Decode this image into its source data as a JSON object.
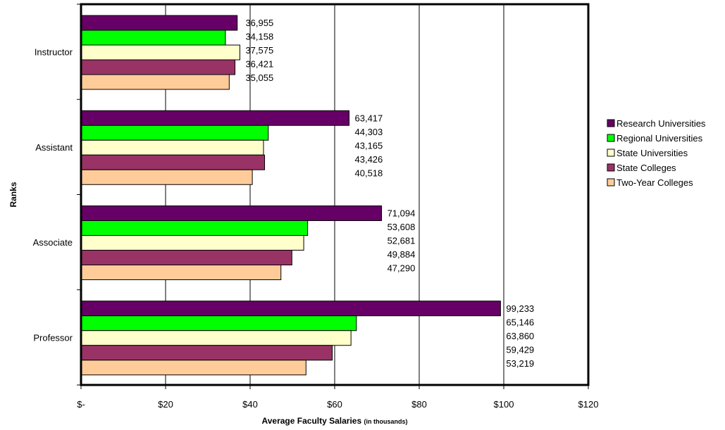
{
  "chart_data": {
    "type": "bar",
    "orientation": "horizontal",
    "categories": [
      "Instructor",
      "Assistant",
      "Associate",
      "Professor"
    ],
    "series": [
      {
        "name": "Research Universities",
        "color": "#660066",
        "values": [
          36955,
          63417,
          71094,
          99233
        ]
      },
      {
        "name": "Regional Universities",
        "color": "#00ff00",
        "values": [
          34158,
          44303,
          53608,
          65146
        ]
      },
      {
        "name": "State Universities",
        "color": "#ffffcc",
        "values": [
          37575,
          43165,
          52681,
          63860
        ]
      },
      {
        "name": "State Colleges",
        "color": "#993366",
        "values": [
          36421,
          43426,
          49884,
          59429
        ]
      },
      {
        "name": "Two-Year Colleges",
        "color": "#ffcc99",
        "values": [
          35055,
          40518,
          47290,
          53219
        ]
      }
    ],
    "value_labels": [
      [
        "36,955",
        "63,417",
        "71,094",
        "99,233"
      ],
      [
        "34,158",
        "44,303",
        "53,608",
        "65,146"
      ],
      [
        "37,575",
        "43,165",
        "52,681",
        "63,860"
      ],
      [
        "36,421",
        "43,426",
        "49,884",
        "59,429"
      ],
      [
        "35,055",
        "40,518",
        "47,290",
        "53,219"
      ]
    ],
    "xlim": [
      0,
      120000
    ],
    "x_ticks": [
      0,
      20000,
      40000,
      60000,
      80000,
      100000,
      120000
    ],
    "x_tick_labels": [
      "$-",
      "$20",
      "$40",
      "$60",
      "$80",
      "$100",
      "$120"
    ],
    "xlabel_main": "Average Faculty Salaries",
    "xlabel_sub": "(in thousands)",
    "ylabel": "Ranks",
    "grid": "vertical",
    "legend_position": "right"
  }
}
